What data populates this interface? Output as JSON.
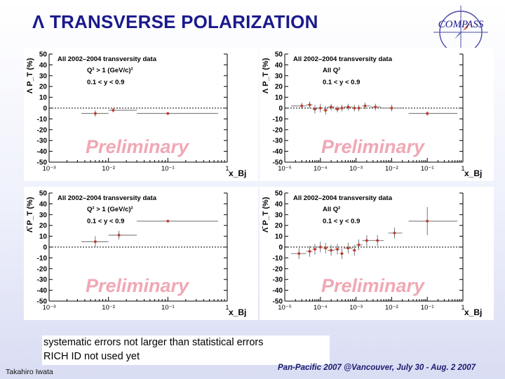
{
  "title": "Λ TRANSVERSE POLARIZATION",
  "logo": {
    "text": "COMPASS"
  },
  "watermark": "Preliminary",
  "dataset_label": "All 2002–2004 transversity data",
  "y_axis_label": "P_T (%)",
  "x_axis_label": "x_Bj",
  "y_ticks": [
    "50",
    "40",
    "30",
    "20",
    "10",
    "0",
    "-10",
    "-20",
    "-30",
    "-40",
    "-50"
  ],
  "x_ticks_a": [
    "10⁻³",
    "10⁻²",
    "10⁻¹",
    "1"
  ],
  "x_ticks_b": [
    "10⁻⁵",
    "10⁻⁴",
    "10⁻³",
    "10⁻²",
    "10⁻¹",
    "1"
  ],
  "notes": [
    "systematic errors not larger than statistical errors",
    "RICH ID not used yet"
  ],
  "author": "Takahiro Iwata",
  "conference": "Pan-Pacific  2007 @Vancouver,  July 30 - Aug. 2 2007",
  "chart_data": [
    {
      "type": "scatter",
      "particle": "Λ",
      "cut_q2": "Q² > 1 (GeV/c)²",
      "cut_y": "0.1 < y < 0.9",
      "xscale": "log",
      "xlim": [
        0.001,
        1
      ],
      "ylim": [
        -50,
        50
      ],
      "points": [
        {
          "x": 0.006,
          "y": -5,
          "xlo": 0.0035,
          "xhi": 0.01,
          "err": 3
        },
        {
          "x": 0.012,
          "y": -2,
          "xlo": 0.01,
          "xhi": 0.03,
          "err": 2
        },
        {
          "x": 0.1,
          "y": -5,
          "xlo": 0.03,
          "xhi": 0.7,
          "err": 1
        }
      ]
    },
    {
      "type": "scatter",
      "particle": "Λ",
      "cut_q2": "All Q²",
      "cut_y": "0.1 < y < 0.9",
      "xscale": "log",
      "xlim": [
        1e-05,
        1
      ],
      "ylim": [
        -50,
        50
      ],
      "points": [
        {
          "x": 3e-05,
          "y": 2,
          "xlo": 1.5e-05,
          "xhi": 4e-05,
          "err": 3
        },
        {
          "x": 5e-05,
          "y": 3,
          "xlo": 4e-05,
          "xhi": 6e-05,
          "err": 3
        },
        {
          "x": 7e-05,
          "y": -1,
          "xlo": 6e-05,
          "xhi": 8e-05,
          "err": 4
        },
        {
          "x": 0.0001,
          "y": 0,
          "xlo": 8e-05,
          "xhi": 0.00012,
          "err": 4
        },
        {
          "x": 0.00014,
          "y": -2,
          "xlo": 0.00012,
          "xhi": 0.00016,
          "err": 4
        },
        {
          "x": 0.0002,
          "y": 1,
          "xlo": 0.00016,
          "xhi": 0.00025,
          "err": 3
        },
        {
          "x": 0.0003,
          "y": -1,
          "xlo": 0.00025,
          "xhi": 0.00035,
          "err": 3
        },
        {
          "x": 0.0004,
          "y": 0,
          "xlo": 0.00035,
          "xhi": 0.00045,
          "err": 3
        },
        {
          "x": 0.0006,
          "y": 1,
          "xlo": 0.00045,
          "xhi": 0.0008,
          "err": 3
        },
        {
          "x": 0.0009,
          "y": 0,
          "xlo": 0.0008,
          "xhi": 0.001,
          "err": 3
        },
        {
          "x": 0.0012,
          "y": 0,
          "xlo": 0.001,
          "xhi": 0.0015,
          "err": 3
        },
        {
          "x": 0.0018,
          "y": 2,
          "xlo": 0.0015,
          "xhi": 0.0025,
          "err": 3
        },
        {
          "x": 0.0035,
          "y": 1,
          "xlo": 0.0025,
          "xhi": 0.005,
          "err": 3
        },
        {
          "x": 0.01,
          "y": 0,
          "xlo": 0.005,
          "xhi": 0.02,
          "err": 3
        },
        {
          "x": 0.1,
          "y": -5,
          "xlo": 0.03,
          "xhi": 0.7,
          "err": 2
        }
      ]
    },
    {
      "type": "scatter",
      "particle": "Λ̄",
      "cut_q2": "Q² > 1 (GeV/c)²",
      "cut_y": "0.1 < y < 0.9",
      "xscale": "log",
      "xlim": [
        0.001,
        1
      ],
      "ylim": [
        -50,
        50
      ],
      "points": [
        {
          "x": 0.006,
          "y": 5,
          "xlo": 0.0035,
          "xhi": 0.01,
          "err": 5
        },
        {
          "x": 0.015,
          "y": 11,
          "xlo": 0.01,
          "xhi": 0.03,
          "err": 4
        },
        {
          "x": 0.1,
          "y": 24,
          "xlo": 0.03,
          "xhi": 0.7,
          "err": 1
        }
      ]
    },
    {
      "type": "scatter",
      "particle": "Λ̄",
      "cut_q2": "All Q²",
      "cut_y": "0.1 < y < 0.9",
      "xscale": "log",
      "xlim": [
        1e-05,
        1
      ],
      "ylim": [
        -50,
        50
      ],
      "points": [
        {
          "x": 2.5e-05,
          "y": -6,
          "xlo": 1.5e-05,
          "xhi": 4e-05,
          "err": 5
        },
        {
          "x": 5e-05,
          "y": -4,
          "xlo": 4e-05,
          "xhi": 6e-05,
          "err": 5
        },
        {
          "x": 7e-05,
          "y": -2,
          "xlo": 6e-05,
          "xhi": 8e-05,
          "err": 5
        },
        {
          "x": 0.0001,
          "y": 0,
          "xlo": 8e-05,
          "xhi": 0.00012,
          "err": 5
        },
        {
          "x": 0.00014,
          "y": -1,
          "xlo": 0.00012,
          "xhi": 0.00016,
          "err": 5
        },
        {
          "x": 0.0002,
          "y": -3,
          "xlo": 0.00016,
          "xhi": 0.00025,
          "err": 5
        },
        {
          "x": 0.0003,
          "y": -2,
          "xlo": 0.00025,
          "xhi": 0.00035,
          "err": 5
        },
        {
          "x": 0.0004,
          "y": -6,
          "xlo": 0.00035,
          "xhi": 0.00045,
          "err": 5
        },
        {
          "x": 0.0006,
          "y": -1,
          "xlo": 0.00045,
          "xhi": 0.0008,
          "err": 5
        },
        {
          "x": 0.0009,
          "y": -3,
          "xlo": 0.0008,
          "xhi": 0.001,
          "err": 5
        },
        {
          "x": 0.0012,
          "y": 2,
          "xlo": 0.001,
          "xhi": 0.0015,
          "err": 5
        },
        {
          "x": 0.002,
          "y": 6,
          "xlo": 0.0015,
          "xhi": 0.003,
          "err": 5
        },
        {
          "x": 0.004,
          "y": 6,
          "xlo": 0.003,
          "xhi": 0.006,
          "err": 5
        },
        {
          "x": 0.012,
          "y": 13,
          "xlo": 0.008,
          "xhi": 0.02,
          "err": 5
        },
        {
          "x": 0.1,
          "y": 24,
          "xlo": 0.03,
          "xhi": 0.7,
          "err": 13
        }
      ]
    }
  ]
}
